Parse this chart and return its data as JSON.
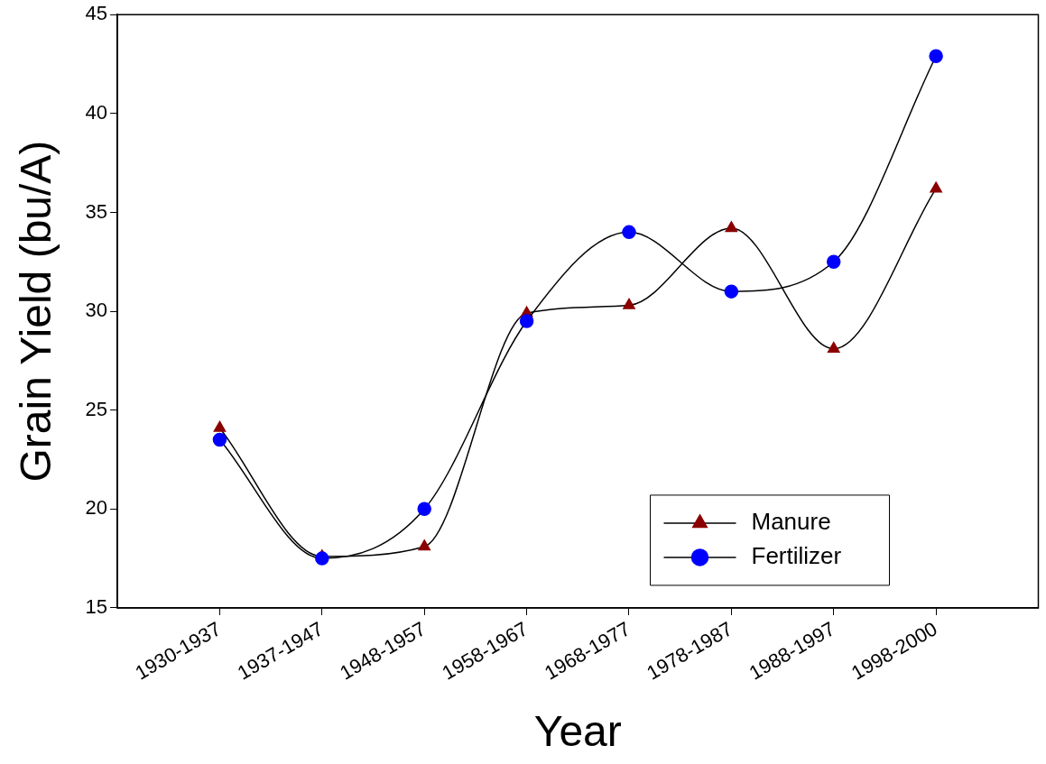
{
  "chart_data": {
    "type": "line",
    "xlabel": "Year",
    "ylabel": "Grain Yield (bu/A)",
    "categories": [
      "1930-1937",
      "1937-1947",
      "1948-1957",
      "1958-1967",
      "1968-1977",
      "1978-1987",
      "1988-1997",
      "1998-2000"
    ],
    "series": [
      {
        "name": "Manure",
        "color": "#8b0000",
        "marker": "triangle",
        "values": [
          24.1,
          17.6,
          18.1,
          29.9,
          30.3,
          34.2,
          28.1,
          36.2
        ]
      },
      {
        "name": "Fertilizer",
        "color": "#0000ff",
        "marker": "circle",
        "values": [
          23.5,
          17.5,
          20.0,
          29.5,
          34.0,
          31.0,
          32.5,
          42.9
        ]
      }
    ],
    "ylim": [
      15,
      45
    ],
    "yticks": [
      15,
      20,
      25,
      30,
      35,
      40,
      45
    ],
    "grid": false,
    "legend": "bottom right",
    "line_style": "solid"
  }
}
